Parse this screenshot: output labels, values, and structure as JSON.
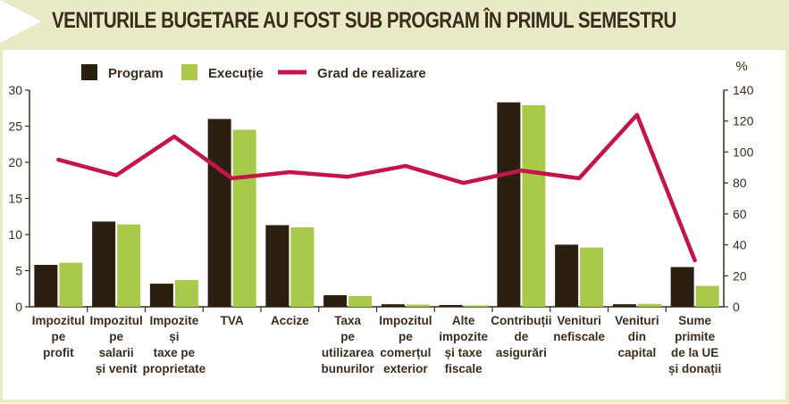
{
  "title": "VENITURILE BUGETARE AU FOST SUB PROGRAM ÎN PRIMUL SEMESTRU",
  "colors": {
    "program": "#2b1f12",
    "executie": "#a8c94a",
    "grad": "#c41548",
    "text": "#3b2c1c",
    "header_bg": "#e9ebc7"
  },
  "chart_data": {
    "type": "bar",
    "title": "VENITURILE BUGETARE AU FOST SUB PROGRAM ÎN PRIMUL SEMESTRU",
    "categories": [
      [
        "Impozitul",
        "pe",
        "profit"
      ],
      [
        "Impozitul",
        "pe",
        "salarii",
        "și venit"
      ],
      [
        "Impozite",
        "și",
        "taxe pe",
        "proprietate"
      ],
      [
        "TVA"
      ],
      [
        "Accize"
      ],
      [
        "Taxa",
        "pe",
        "utilizarea",
        "bunurilor"
      ],
      [
        "Impozitul",
        "pe",
        "comerțul",
        "exterior"
      ],
      [
        "Alte",
        "impozite",
        "și taxe",
        "fiscale"
      ],
      [
        "Contribuții",
        "de",
        "asigurări"
      ],
      [
        "Venituri",
        "nefiscale"
      ],
      [
        "Venituri",
        "din",
        "capital"
      ],
      [
        "Sume",
        "primite",
        "de la UE",
        "și donații"
      ]
    ],
    "series": [
      {
        "name": "Program",
        "axis": "left",
        "kind": "bar",
        "values": [
          5.8,
          11.8,
          3.2,
          26.0,
          11.3,
          1.6,
          0.35,
          0.25,
          28.3,
          8.6,
          0.35,
          5.5
        ]
      },
      {
        "name": "Execuție",
        "axis": "left",
        "kind": "bar",
        "values": [
          6.1,
          11.4,
          3.7,
          24.5,
          11.0,
          1.5,
          0.3,
          0.2,
          27.9,
          8.2,
          0.4,
          2.9
        ]
      },
      {
        "name": "Grad de realizare",
        "axis": "right",
        "kind": "line",
        "values": [
          95,
          85,
          110,
          83,
          87,
          84,
          91,
          80,
          88,
          83,
          124,
          30
        ]
      }
    ],
    "y_left": {
      "ticks": [
        "0",
        "5",
        "10",
        "15",
        "20",
        "25",
        "30"
      ],
      "ylim": [
        0,
        30
      ]
    },
    "y_right": {
      "label": "%",
      "ticks": [
        "0",
        "20",
        "40",
        "60",
        "80",
        "100",
        "120",
        "140"
      ],
      "ylim": [
        0,
        140
      ]
    },
    "grid": false,
    "legend": "top-left"
  }
}
